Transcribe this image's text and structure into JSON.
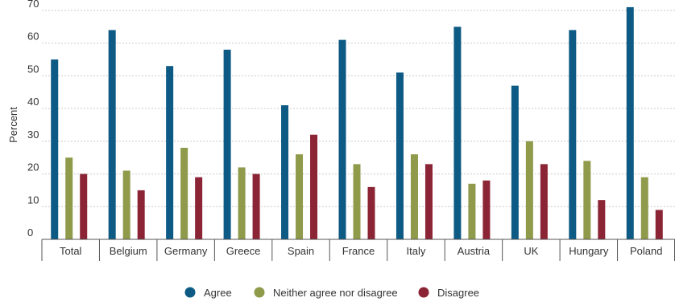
{
  "chart_data": {
    "type": "bar",
    "title": "",
    "xlabel": "",
    "ylabel": "Percent",
    "ylim": [
      0,
      70
    ],
    "yticks": [
      0,
      10,
      20,
      30,
      40,
      50,
      60,
      70
    ],
    "grid": "horizontal-dotted",
    "legend_position": "bottom-center",
    "categories": [
      "Total",
      "Belgium",
      "Germany",
      "Greece",
      "Spain",
      "France",
      "Italy",
      "Austria",
      "UK",
      "Hungary",
      "Poland"
    ],
    "series": [
      {
        "name": "Agree",
        "color": "#0d5a85",
        "values": [
          55,
          64,
          53,
          58,
          41,
          61,
          51,
          65,
          47,
          64,
          71
        ]
      },
      {
        "name": "Neither agree nor disagree",
        "color": "#8f9a4b",
        "values": [
          25,
          21,
          28,
          22,
          26,
          23,
          26,
          17,
          30,
          24,
          19
        ]
      },
      {
        "name": "Disagree",
        "color": "#8b2434",
        "values": [
          20,
          15,
          19,
          20,
          32,
          16,
          23,
          18,
          23,
          12,
          9
        ]
      }
    ]
  }
}
